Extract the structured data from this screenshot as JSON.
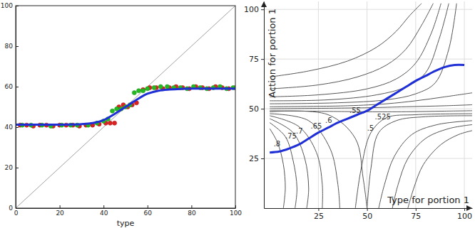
{
  "chart_data": [
    {
      "type": "scatter",
      "xlabel": "type",
      "xlim": [
        0,
        100
      ],
      "ylim": [
        0,
        100
      ],
      "xticks": [
        0,
        20,
        40,
        60,
        80,
        100
      ],
      "yticks": [
        0,
        20,
        40,
        60,
        80,
        100
      ],
      "series": [
        {
          "type": "line",
          "color": "#a0a0a0",
          "x": [
            0,
            100
          ],
          "values": [
            0,
            100
          ]
        },
        {
          "type": "scatter",
          "color": "#dd2222",
          "marker": "circle",
          "x": [
            2,
            5,
            8,
            11,
            14,
            17,
            20,
            23,
            26,
            29,
            32,
            35,
            38,
            41,
            43,
            45,
            47,
            49,
            51,
            53,
            55,
            58,
            61,
            64,
            67,
            70,
            73,
            76,
            79,
            82,
            85,
            88,
            91,
            94,
            97,
            100
          ],
          "values": [
            41,
            41,
            40.5,
            41,
            41,
            40.5,
            41,
            41,
            41,
            40.5,
            41,
            41,
            41.5,
            42,
            42,
            42,
            50,
            51,
            50,
            51,
            52,
            58.5,
            59.5,
            59.5,
            59,
            59.5,
            60,
            59.5,
            59,
            60,
            59.5,
            59,
            60,
            59.5,
            59,
            59.5
          ]
        },
        {
          "type": "scatter",
          "color": "#22bb22",
          "marker": "circle",
          "x": [
            3,
            7,
            12,
            16,
            21,
            25,
            28,
            33,
            37,
            40,
            42,
            44,
            46,
            48,
            50,
            52,
            54,
            56,
            58,
            60,
            63,
            66,
            69,
            72,
            75,
            78,
            81,
            84,
            87,
            90,
            93,
            96,
            99
          ],
          "values": [
            41,
            41,
            41,
            40.5,
            41,
            41,
            41,
            41,
            42,
            43,
            44,
            48,
            49,
            49,
            50,
            51,
            57,
            58,
            58,
            59,
            59.5,
            60,
            60,
            59.5,
            59.5,
            59,
            60,
            59.5,
            59,
            59.5,
            60,
            59,
            59.5
          ]
        },
        {
          "type": "line",
          "color": "#1f2fd6",
          "x": [
            0,
            5,
            10,
            15,
            20,
            25,
            30,
            35,
            40,
            45,
            50,
            55,
            60,
            65,
            70,
            75,
            80,
            85,
            90,
            95,
            100
          ],
          "values": [
            41.2,
            41.2,
            41.2,
            41.2,
            41.2,
            41.3,
            41.5,
            42,
            43.5,
            46.5,
            50,
            53.5,
            56.5,
            58,
            58.6,
            58.9,
            59,
            59,
            59,
            59,
            59
          ]
        }
      ]
    },
    {
      "type": "line",
      "xlabel": "Type for portion 1",
      "ylabel": "Action for portion 1",
      "xlim": [
        -3,
        104
      ],
      "ylim": [
        0,
        104
      ],
      "xticks": [
        25,
        50,
        75,
        100
      ],
      "yticks": [
        25,
        50,
        75,
        100
      ],
      "grid": true,
      "series": [
        {
          "color": "#555555",
          "x": [
            0,
            20,
            40,
            55,
            65,
            72,
            78
          ],
          "values": [
            66,
            69,
            74,
            81,
            89,
            97,
            103
          ]
        },
        {
          "color": "#555555",
          "x": [
            0,
            25,
            45,
            60,
            70,
            78,
            84
          ],
          "values": [
            60,
            62,
            66,
            72,
            80,
            92,
            103
          ]
        },
        {
          "color": "#555555",
          "x": [
            0,
            25,
            50,
            65,
            75,
            83,
            88
          ],
          "values": [
            56,
            57,
            60,
            65,
            73,
            88,
            103
          ]
        },
        {
          "color": "#555555",
          "x": [
            0,
            30,
            55,
            70,
            80,
            87,
            92
          ],
          "values": [
            54,
            54.5,
            57,
            61,
            68,
            85,
            103
          ]
        },
        {
          "color": "#555555",
          "x": [
            0,
            35,
            60,
            75,
            85,
            92,
            96
          ],
          "values": [
            52.5,
            53,
            54.5,
            57.5,
            63,
            80,
            103
          ]
        },
        {
          "color": "#555555",
          "x": [
            0,
            40,
            60,
            75,
            90,
            104
          ],
          "values": [
            51,
            51.5,
            52.5,
            54,
            56,
            58
          ]
        },
        {
          "color": "#555555",
          "x": [
            0,
            50,
            70,
            90,
            104
          ],
          "values": [
            50,
            50.5,
            51,
            51.5,
            52
          ]
        },
        {
          "color": "#555555",
          "x": [
            0,
            50,
            70,
            90,
            104
          ],
          "values": [
            49,
            48.5,
            48.5,
            48.8,
            49
          ]
        },
        {
          "color": "#555555",
          "x": [
            44,
            47,
            52,
            60,
            75,
            104
          ],
          "values": [
            0,
            20,
            38,
            45.5,
            47,
            47.5
          ]
        },
        {
          "color": "#555555",
          "x": [
            50,
            52,
            56,
            65,
            80,
            104
          ],
          "values": [
            0,
            20,
            38,
            44,
            46,
            46.5
          ]
        },
        {
          "color": "#555555",
          "x": [
            56,
            59,
            64,
            73,
            86,
            104
          ],
          "values": [
            0,
            12,
            26,
            37,
            42,
            44
          ]
        },
        {
          "color": "#555555",
          "x": [
            63,
            66,
            71,
            80,
            92,
            104
          ],
          "values": [
            0,
            12,
            25,
            35,
            40,
            42
          ]
        },
        {
          "color": "#555555",
          "x": [
            71,
            74,
            79,
            88,
            97,
            104
          ],
          "values": [
            0,
            10,
            22,
            32,
            37,
            39
          ]
        },
        {
          "color": "#555555",
          "x": [
            0,
            4,
            7,
            8,
            7
          ],
          "values": [
            40,
            33,
            22,
            10,
            0
          ]
        },
        {
          "color": "#555555",
          "x": [
            0,
            8,
            12,
            14,
            13
          ],
          "values": [
            43,
            36,
            24,
            10,
            0
          ]
        },
        {
          "color": "#555555",
          "x": [
            0,
            12,
            18,
            20,
            19
          ],
          "values": [
            45,
            38,
            25,
            10,
            0
          ]
        },
        {
          "color": "#555555",
          "x": [
            0,
            15,
            24,
            27,
            27
          ],
          "values": [
            46.5,
            41,
            28,
            12,
            0
          ]
        },
        {
          "color": "#555555",
          "x": [
            0,
            20,
            31,
            35,
            36
          ],
          "values": [
            47.5,
            44,
            30,
            12,
            0
          ]
        },
        {
          "color": "#555555",
          "x": [
            0,
            30,
            44,
            48,
            50
          ],
          "values": [
            48.5,
            47,
            35,
            15,
            0
          ]
        },
        {
          "color": "#1f2fd6",
          "x": [
            0,
            5,
            10,
            15,
            20,
            25,
            30,
            35,
            40,
            45,
            50,
            55,
            60,
            65,
            70,
            75,
            80,
            85,
            90,
            95,
            100
          ],
          "values": [
            28,
            28.5,
            30,
            32,
            35,
            38,
            40.5,
            43,
            45,
            47,
            49,
            52,
            55,
            58,
            61,
            64,
            66.5,
            69,
            71,
            72,
            72
          ]
        }
      ],
      "annotations": [
        {
          "text": ".8",
          "x": 2,
          "y": 31
        },
        {
          "text": ".75",
          "x": 8,
          "y": 35
        },
        {
          "text": ".7",
          "x": 13.5,
          "y": 37.5
        },
        {
          "text": ".65",
          "x": 21,
          "y": 40
        },
        {
          "text": ".6",
          "x": 28.5,
          "y": 43
        },
        {
          "text": ".55",
          "x": 41,
          "y": 48
        },
        {
          "text": ".525",
          "x": 54,
          "y": 44.6
        },
        {
          "text": ".5",
          "x": 50,
          "y": 39
        }
      ]
    }
  ]
}
